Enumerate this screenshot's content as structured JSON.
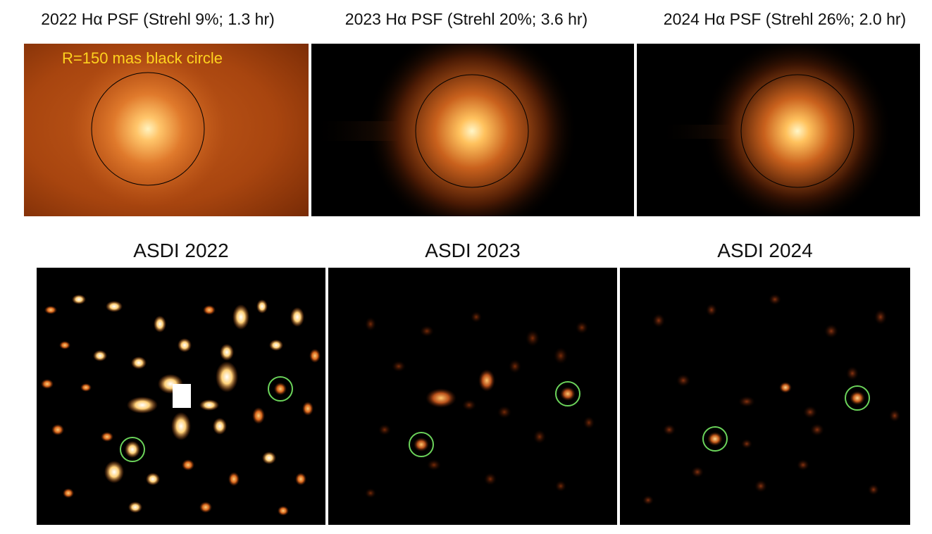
{
  "top_titles": [
    "2022 Hα PSF (Strehl 9%; 1.3 hr)",
    "2023 Hα PSF (Strehl 20%; 3.6 hr)",
    "2024 Hα PSF (Strehl 26%; 2.0 hr)"
  ],
  "annotation": "R=150 mas black circle",
  "bottom_titles": [
    "ASDI 2022",
    "ASDI 2023",
    "ASDI 2024"
  ],
  "colors": {
    "psf_core": "#ffe9a0",
    "psf_halo": "#a84a10",
    "planet_marker": "#6bd35a",
    "annotation_text": "#ffd21e"
  }
}
